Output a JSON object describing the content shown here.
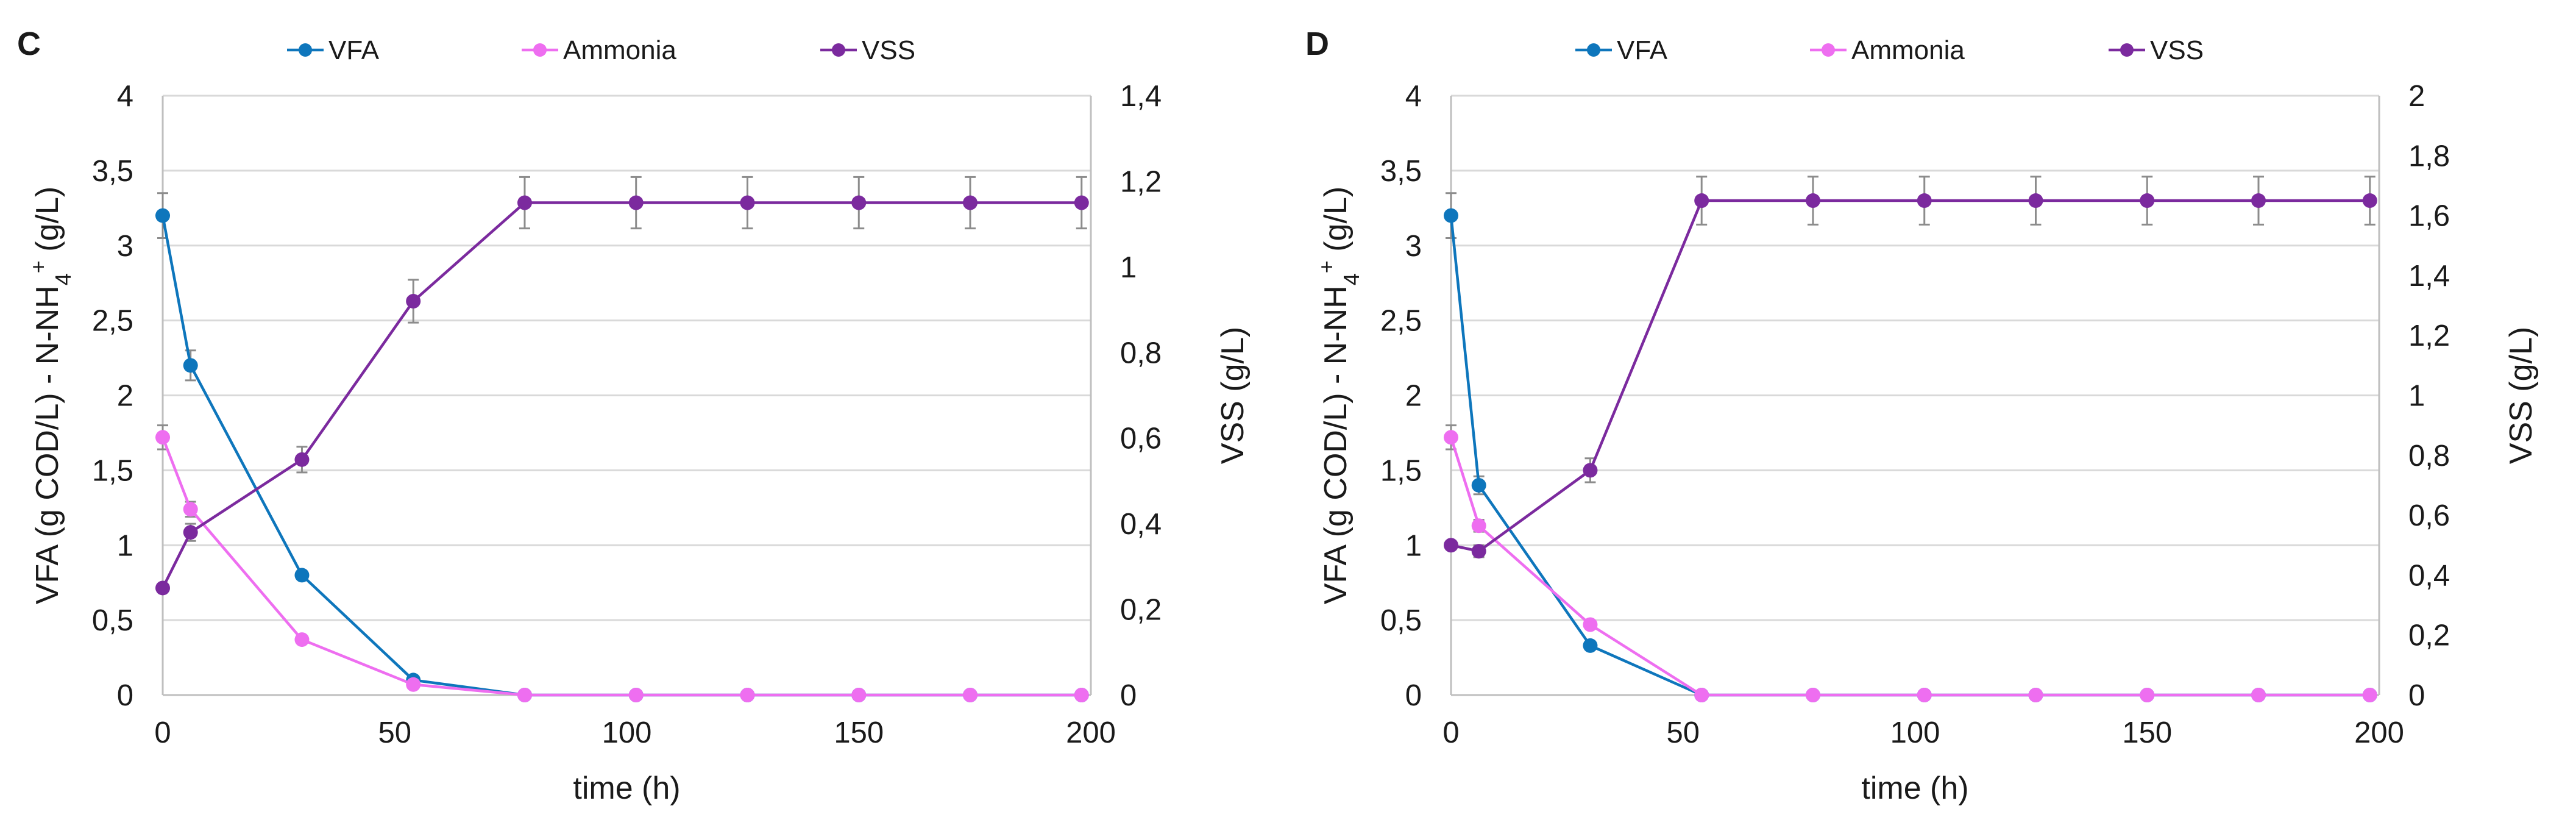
{
  "colors": {
    "VFA": "#0e76bc",
    "Ammonia": "#ee6ef0",
    "VSS": "#7b2a9e",
    "errorbar": "#8c8c8c"
  },
  "chart_data": [
    {
      "type": "line",
      "panel": "C",
      "xlabel": "time (h)",
      "ylabel": "VFA (g COD/L) - N-NH4+ (g/L)",
      "ylabel_main": "VFA (g COD/L) - N-NH",
      "ylabel_sub": "4",
      "ylabel_sup": "+",
      "ylabel_tail": " (g/L)",
      "y2label": "VSS (g/L)",
      "xlim": [
        0,
        200
      ],
      "ylim": [
        0,
        4
      ],
      "y2lim": [
        0,
        1.4
      ],
      "xticks": [
        "0",
        "50",
        "100",
        "150",
        "200"
      ],
      "yticks": [
        "0",
        "0,5",
        "1",
        "1,5",
        "2",
        "2,5",
        "3",
        "3,5",
        "4"
      ],
      "y2ticks": [
        "0",
        "0,2",
        "0,4",
        "0,6",
        "0,8",
        "1",
        "1,2",
        "1,4"
      ],
      "legend": [
        "VFA",
        "Ammonia",
        "VSS"
      ],
      "series": [
        {
          "name": "VFA",
          "axis": "left",
          "x": [
            0,
            6,
            30,
            54,
            78,
            102,
            126,
            150,
            174,
            198
          ],
          "y": [
            3.2,
            2.2,
            0.8,
            0.1,
            0,
            0,
            0,
            0,
            0,
            0
          ],
          "err": [
            0.15,
            0.1,
            0,
            0,
            0,
            0,
            0,
            0,
            0,
            0
          ]
        },
        {
          "name": "Ammonia",
          "axis": "left",
          "x": [
            0,
            6,
            30,
            54,
            78,
            102,
            126,
            150,
            174,
            198
          ],
          "y": [
            1.72,
            1.24,
            0.37,
            0.07,
            0,
            0,
            0,
            0,
            0,
            0
          ],
          "err": [
            0.08,
            0.05,
            0,
            0,
            0,
            0,
            0,
            0,
            0,
            0
          ]
        },
        {
          "name": "VSS",
          "axis": "right",
          "x": [
            0,
            6,
            30,
            54,
            78,
            102,
            126,
            150,
            174,
            198
          ],
          "y": [
            0.25,
            0.38,
            0.55,
            0.92,
            1.15,
            1.15,
            1.15,
            1.15,
            1.15,
            1.15
          ],
          "err": [
            0,
            0.02,
            0.03,
            0.05,
            0.06,
            0.06,
            0.06,
            0.06,
            0.06,
            0.06
          ]
        }
      ]
    },
    {
      "type": "line",
      "panel": "D",
      "xlabel": "time (h)",
      "ylabel": "VFA (g COD/L) - N-NH4+ (g/L)",
      "ylabel_main": "VFA (g COD/L) - N-NH",
      "ylabel_sub": "4",
      "ylabel_sup": "+",
      "ylabel_tail": " (g/L)",
      "y2label": "VSS (g/L)",
      "xlim": [
        0,
        200
      ],
      "ylim": [
        0,
        4
      ],
      "y2lim": [
        0,
        2
      ],
      "xticks": [
        "0",
        "50",
        "100",
        "150",
        "200"
      ],
      "yticks": [
        "0",
        "0,5",
        "1",
        "1,5",
        "2",
        "2,5",
        "3",
        "3,5",
        "4"
      ],
      "y2ticks": [
        "0",
        "0,2",
        "0,4",
        "0,6",
        "0,8",
        "1",
        "1,2",
        "1,4",
        "1,6",
        "1,8",
        "2"
      ],
      "legend": [
        "VFA",
        "Ammonia",
        "VSS"
      ],
      "series": [
        {
          "name": "VFA",
          "axis": "left",
          "x": [
            0,
            6,
            30,
            54,
            78,
            102,
            126,
            150,
            174,
            198
          ],
          "y": [
            3.2,
            1.4,
            0.33,
            0,
            0,
            0,
            0,
            0,
            0,
            0
          ],
          "err": [
            0.15,
            0.06,
            0,
            0,
            0,
            0,
            0,
            0,
            0,
            0
          ]
        },
        {
          "name": "Ammonia",
          "axis": "left",
          "x": [
            0,
            6,
            30,
            54,
            78,
            102,
            126,
            150,
            174,
            198
          ],
          "y": [
            1.72,
            1.13,
            0.47,
            0,
            0,
            0,
            0,
            0,
            0,
            0
          ],
          "err": [
            0.08,
            0.04,
            0,
            0,
            0,
            0,
            0,
            0,
            0,
            0
          ]
        },
        {
          "name": "VSS",
          "axis": "right",
          "x": [
            0,
            6,
            30,
            54,
            78,
            102,
            126,
            150,
            174,
            198
          ],
          "y": [
            0.5,
            0.48,
            0.75,
            1.65,
            1.65,
            1.65,
            1.65,
            1.65,
            1.65,
            1.65
          ],
          "err": [
            0,
            0.02,
            0.04,
            0.08,
            0.08,
            0.08,
            0.08,
            0.08,
            0.08,
            0.08
          ]
        }
      ]
    }
  ]
}
